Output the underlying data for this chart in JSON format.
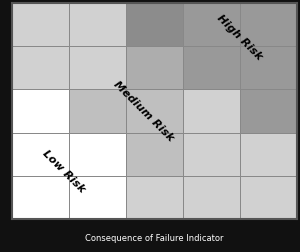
{
  "xlabel": "Consequence of Failure Indicator",
  "low_risk_label": "Low Risk",
  "medium_risk_label": "Medium Risk",
  "high_risk_label": "High Risk",
  "label_fontsize": 8,
  "label_rotation": -45,
  "background_color": "#111111",
  "cell_colors": [
    [
      1.0,
      1.0,
      0.82,
      0.82,
      0.82
    ],
    [
      1.0,
      1.0,
      0.75,
      0.82,
      0.82
    ],
    [
      1.0,
      0.75,
      0.75,
      0.82,
      0.6
    ],
    [
      0.82,
      0.82,
      0.68,
      0.6,
      0.6
    ],
    [
      0.82,
      0.82,
      0.55,
      0.6,
      0.6
    ]
  ],
  "border_color": "#333333",
  "cell_edge_color": "#888888"
}
